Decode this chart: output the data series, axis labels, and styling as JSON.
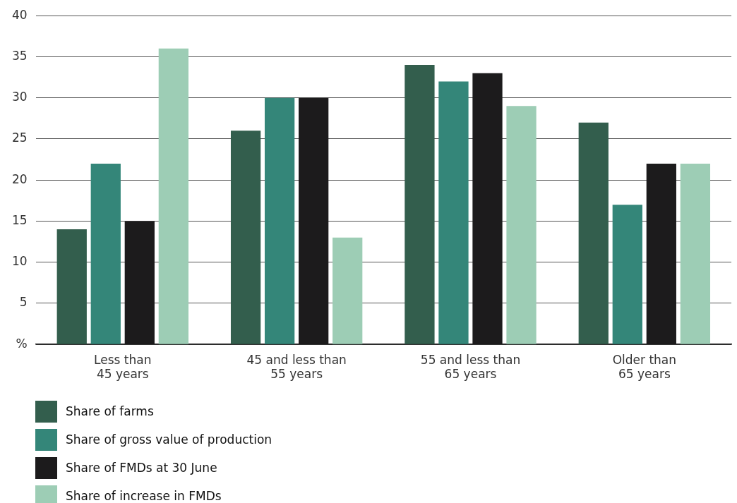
{
  "chart_data": {
    "type": "bar",
    "categories": [
      "Less than 45 years",
      "45 and less than 55 years",
      "55 and less than 65 years",
      "Older than 65 years"
    ],
    "series": [
      {
        "name": "Share of farms",
        "color": "#335e4d",
        "values": [
          14,
          26,
          34,
          27
        ]
      },
      {
        "name": "Share of gross value of production",
        "color": "#348679",
        "values": [
          22,
          30,
          32,
          17
        ]
      },
      {
        "name": "Share of FMDs at 30 June",
        "color": "#1c1b1c",
        "values": [
          15,
          30,
          33,
          22
        ]
      },
      {
        "name": "Share of increase in FMDs",
        "color": "#9dcdb5",
        "values": [
          36,
          13,
          29,
          22
        ]
      }
    ],
    "ylim": [
      0,
      40
    ],
    "yticks": [
      {
        "value": 0,
        "label": "%"
      },
      5,
      10,
      15,
      20,
      25,
      30,
      35,
      40
    ],
    "grid": "y",
    "legend": "bottom left"
  }
}
